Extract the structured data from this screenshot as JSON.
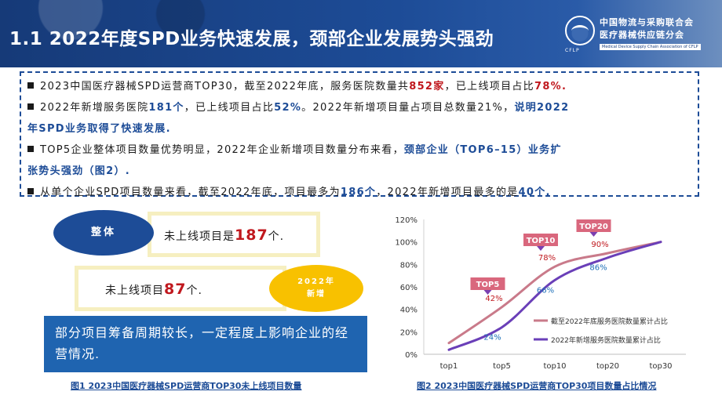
{
  "header": {
    "title": "1.1 2022年度SPD业务快速发展，颈部企业发展势头强劲",
    "org_line1": "中国物流与采购联合会",
    "org_line2": "医疗器械供应链分会",
    "org_abbr": "CFLP",
    "org_en": "Medical Device Supply Chain Association of CFLP"
  },
  "bullets": {
    "b1": {
      "t1": "2023中国医疗器械SPD运营商TOP30，截至2022年底，服务医院数量共",
      "v1": "852家",
      "t2": "，已上线项目占比",
      "v2": "78%."
    },
    "b2": {
      "t1": "2022年新增服务医院",
      "v1": "181个",
      "t2": "，已上线项目占比",
      "v2": "52%",
      "t3": "。2022年新增项目量占项目总数量21%，",
      "h1": "说明2022",
      "h2": "年SPD业务取得了快速发展."
    },
    "b3": {
      "t1": "TOP5企业整体项目数量优势明显，2022年企业新增项目数量分布来看，",
      "h1": "颈部企业（TOP6–15）业务扩",
      "h2": "张势头强劲（图2）."
    },
    "b4": {
      "t1": "从单个企业SPD项目数量来看，截至2022年底，项目最多为",
      "v1": "186个",
      "t2": "，2022年新增项目最多的是",
      "v2": "40个."
    }
  },
  "left_figure": {
    "overall_label": "整体",
    "overall_prefix": "未上线项目是",
    "overall_value": "187",
    "overall_suffix": "个.",
    "new_prefix": "未上线项目",
    "new_value": "87",
    "new_suffix": "个.",
    "new_label_1": "2022年",
    "new_label_2": "新增",
    "note": "部分项目筹备周期较长，一定程度上影响企业的经营情况.",
    "caption": "图1 2023中国医疗器械SPD运营商TOP30未上线项目数量"
  },
  "right_caption": "图2 2023中国医疗器械SPD运营商TOP30项目数量占比情况",
  "colors": {
    "series1": "#c97a8a",
    "series2": "#6a3fb8",
    "callout": "#d9677d",
    "navy": "#1d4c97"
  },
  "chart_data": {
    "type": "line",
    "categories": [
      "top1",
      "top5",
      "top10",
      "top20",
      "top30"
    ],
    "yticks": [
      "0%",
      "20%",
      "40%",
      "60%",
      "80%",
      "100%",
      "120%"
    ],
    "ylim": [
      0,
      120
    ],
    "series": [
      {
        "name": "截至2022年底服务医院数量累计占比",
        "values": [
          10,
          42,
          78,
          90,
          100
        ],
        "labels": [
          "",
          "42%",
          "78%",
          "90%",
          ""
        ]
      },
      {
        "name": "2022年新增服务医院数量累计占比",
        "values": [
          4,
          24,
          66,
          86,
          100
        ],
        "labels": [
          "",
          "24%",
          "66%",
          "86%",
          ""
        ]
      }
    ],
    "callouts": [
      "TOP5",
      "TOP10",
      "TOP20"
    ]
  }
}
